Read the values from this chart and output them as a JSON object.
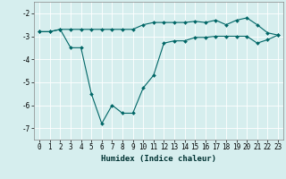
{
  "xlabel": "Humidex (Indice chaleur)",
  "bg_color": "#d6eeee",
  "grid_color": "#ffffff",
  "line_color": "#006666",
  "xlim": [
    -0.5,
    23.5
  ],
  "ylim": [
    -7.5,
    -1.5
  ],
  "yticks": [
    -7,
    -6,
    -5,
    -4,
    -3,
    -2
  ],
  "xticks": [
    0,
    1,
    2,
    3,
    4,
    5,
    6,
    7,
    8,
    9,
    10,
    11,
    12,
    13,
    14,
    15,
    16,
    17,
    18,
    19,
    20,
    21,
    22,
    23
  ],
  "line1_x": [
    0,
    1,
    2,
    3,
    4,
    5,
    6,
    7,
    8,
    9,
    10,
    11,
    12,
    13,
    14,
    15,
    16,
    17,
    18,
    19,
    20,
    21,
    22,
    23
  ],
  "line1_y": [
    -2.8,
    -2.8,
    -2.7,
    -2.7,
    -2.7,
    -2.7,
    -2.7,
    -2.7,
    -2.7,
    -2.7,
    -2.5,
    -2.4,
    -2.4,
    -2.4,
    -2.4,
    -2.35,
    -2.4,
    -2.3,
    -2.5,
    -2.3,
    -2.2,
    -2.5,
    -2.85,
    -2.95
  ],
  "line2_x": [
    0,
    1,
    2,
    3,
    4,
    5,
    6,
    7,
    8,
    9,
    10,
    11,
    12,
    13,
    14,
    15,
    16,
    17,
    18,
    19,
    20,
    21,
    22,
    23
  ],
  "line2_y": [
    -2.8,
    -2.8,
    -2.7,
    -3.5,
    -3.5,
    -5.5,
    -6.8,
    -6.0,
    -6.35,
    -6.35,
    -5.25,
    -4.7,
    -3.3,
    -3.2,
    -3.2,
    -3.05,
    -3.05,
    -3.0,
    -3.0,
    -3.0,
    -3.0,
    -3.3,
    -3.15,
    -2.95
  ],
  "marker": "D",
  "marker_size": 2,
  "linewidth": 0.8,
  "tick_fontsize": 5.5,
  "xlabel_fontsize": 6.5
}
